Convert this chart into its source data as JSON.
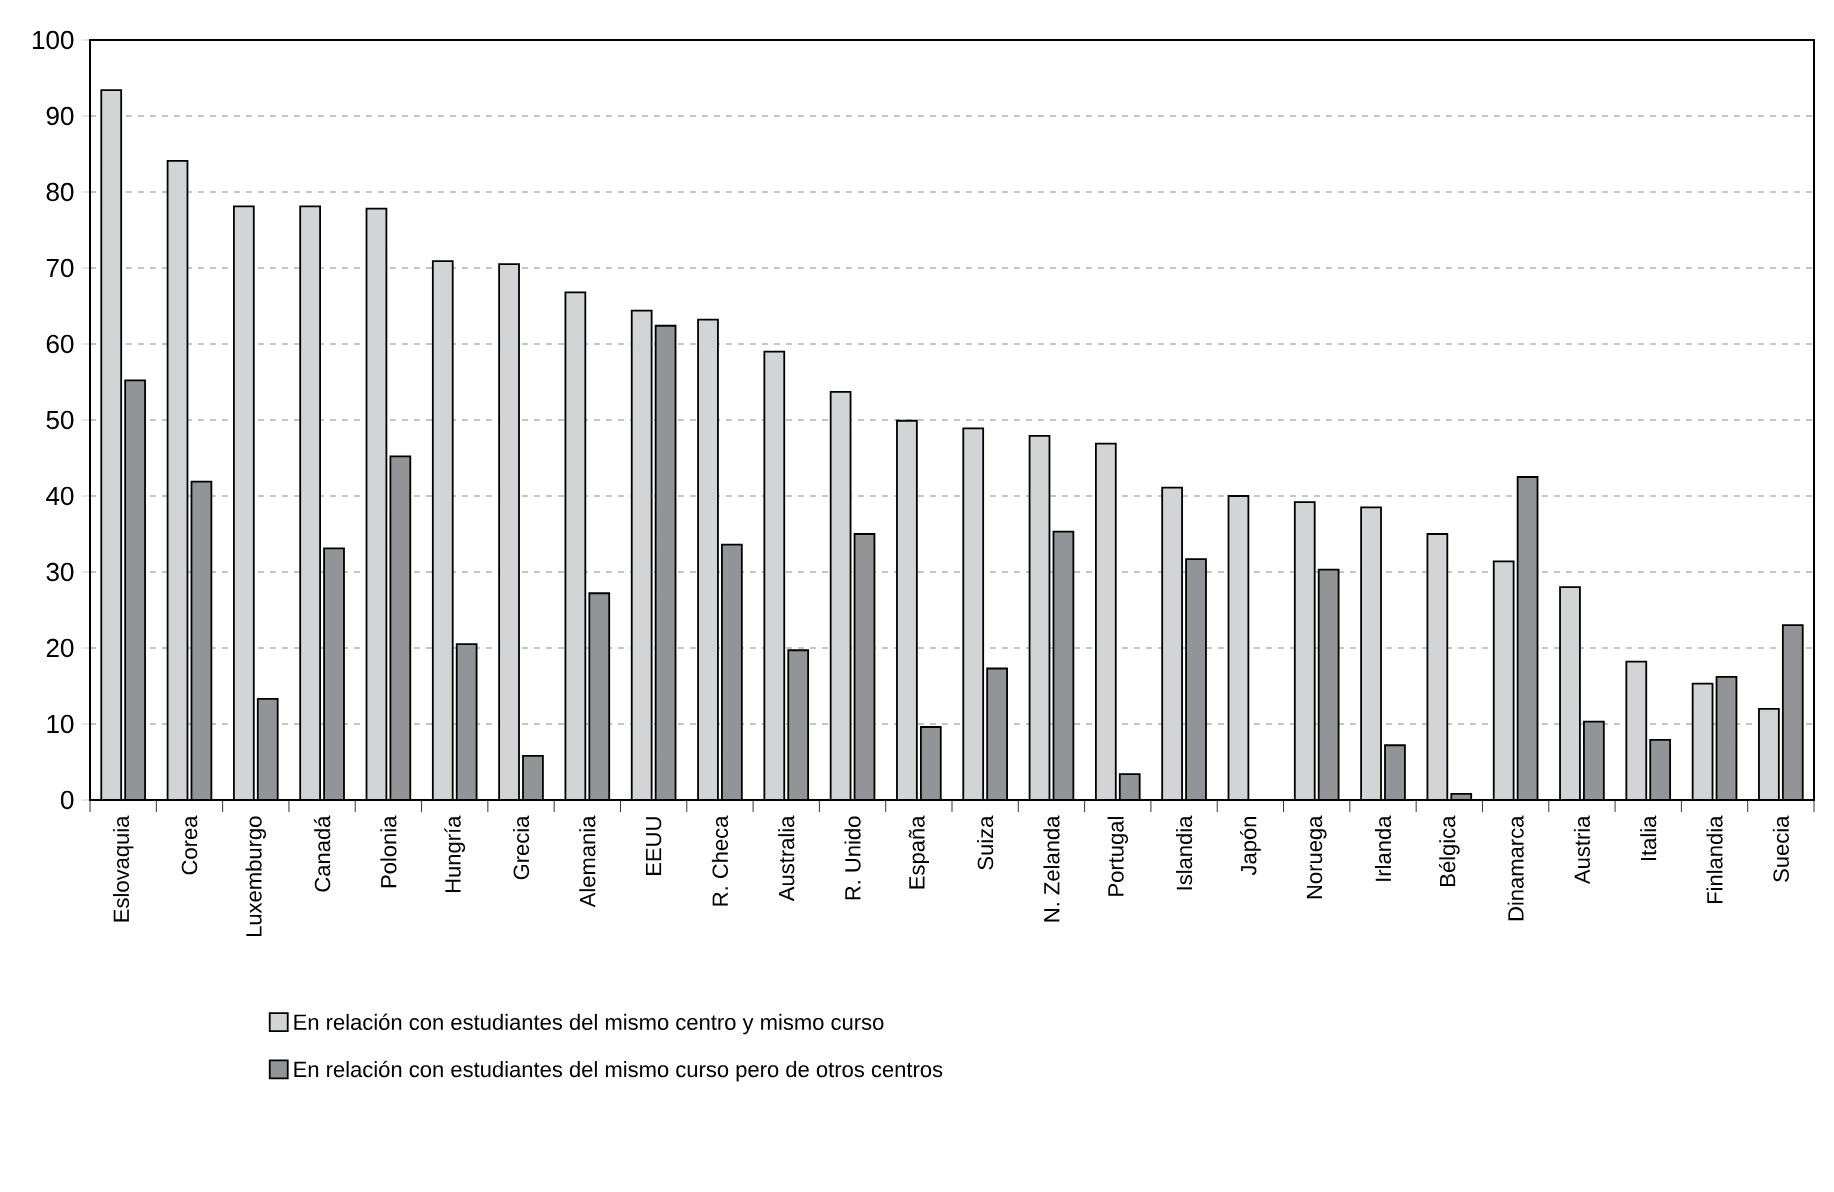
{
  "chart_data": {
    "type": "bar",
    "categories": [
      "Eslovaquia",
      "Corea",
      "Luxemburgo",
      "Canadá",
      "Polonia",
      "Hungría",
      "Grecia",
      "Alemania",
      "EEUU",
      "R. Checa",
      "Australia",
      "R. Unido",
      "España",
      "Suiza",
      "N. Zelanda",
      "Portugal",
      "Islandia",
      "Japón",
      "Noruega",
      "Irlanda",
      "Bélgica",
      "Dinamarca",
      "Austria",
      "Italia",
      "Finlandia",
      "Suecia"
    ],
    "series": [
      {
        "name": "En relación con estudiantes del mismo centro y mismo curso",
        "color": "#d3d4d6",
        "values": [
          93.4,
          84.1,
          78.1,
          78.1,
          77.8,
          70.9,
          70.5,
          66.8,
          64.4,
          63.2,
          59.0,
          53.7,
          49.9,
          48.9,
          47.9,
          46.9,
          41.1,
          40.0,
          39.2,
          38.5,
          35.0,
          31.4,
          28.0,
          18.2,
          15.3,
          12.0
        ]
      },
      {
        "name": "En relación con estudiantes del mismo curso pero de otros centros",
        "color": "#939497",
        "values": [
          55.2,
          41.9,
          13.3,
          33.1,
          45.2,
          20.5,
          5.8,
          27.2,
          62.4,
          33.6,
          19.7,
          35.0,
          9.6,
          17.3,
          35.3,
          3.4,
          31.7,
          null,
          30.3,
          7.2,
          0.8,
          42.5,
          10.3,
          7.9,
          16.2,
          23.0
        ]
      }
    ],
    "ylim": [
      0,
      100
    ],
    "yticks": [
      0,
      10,
      20,
      30,
      40,
      50,
      60,
      70,
      80,
      90,
      100
    ],
    "grid": "y",
    "legend": "bottom"
  }
}
